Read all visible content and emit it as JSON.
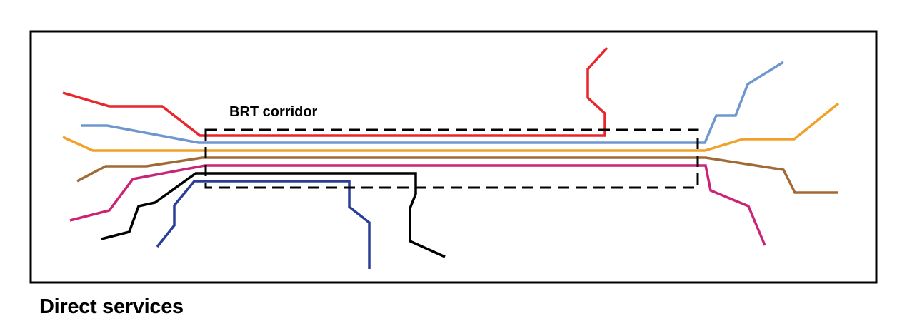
{
  "corridor": {
    "label": "BRT corridor"
  },
  "caption": "Direct services",
  "routes": [
    {
      "id": "red",
      "color": "#e8262b"
    },
    {
      "id": "light-blue",
      "color": "#6f97cf"
    },
    {
      "id": "orange",
      "color": "#f0a12a"
    },
    {
      "id": "brown",
      "color": "#a06a37"
    },
    {
      "id": "magenta",
      "color": "#c92475"
    },
    {
      "id": "black",
      "color": "#000000"
    },
    {
      "id": "dark-blue",
      "color": "#2c3d96"
    }
  ]
}
